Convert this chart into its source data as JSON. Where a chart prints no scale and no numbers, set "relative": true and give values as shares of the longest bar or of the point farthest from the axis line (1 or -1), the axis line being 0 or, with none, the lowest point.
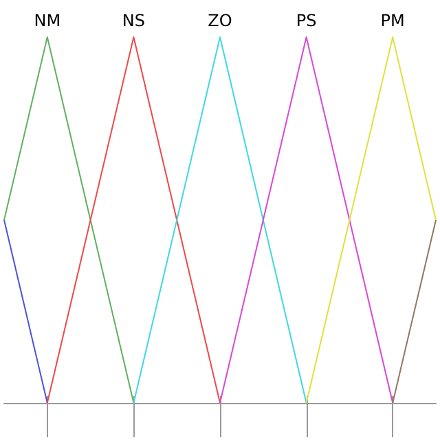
{
  "chart_data": {
    "type": "line",
    "relative": true,
    "categories": [
      null,
      "NM",
      null,
      "NS",
      null,
      "ZO",
      null,
      "PS",
      null,
      "PM",
      null
    ],
    "grid": false,
    "marker": "none",
    "line_style": "solid",
    "series": [
      {
        "color": "#5050e0",
        "values": [
          0.5,
          0,
          null,
          null,
          null,
          null,
          null,
          null,
          null,
          null,
          null
        ]
      },
      {
        "color": "#60b060",
        "values": [
          0.5,
          1,
          0.5,
          0,
          null,
          null,
          null,
          null,
          null,
          null,
          null
        ]
      },
      {
        "color": "#f04848",
        "values": [
          null,
          0,
          0.5,
          1,
          0.5,
          0,
          null,
          null,
          null,
          null,
          null
        ]
      },
      {
        "color": "#40d8e0",
        "values": [
          null,
          null,
          null,
          0,
          0.5,
          1,
          0.5,
          0,
          null,
          null,
          null
        ]
      },
      {
        "color": "#d848d8",
        "values": [
          null,
          null,
          null,
          null,
          null,
          0,
          0.5,
          1,
          0.5,
          0,
          null
        ]
      },
      {
        "color": "#e0e040",
        "values": [
          null,
          null,
          null,
          null,
          null,
          null,
          null,
          0,
          0.5,
          1,
          0.5
        ]
      },
      {
        "color": "#907860",
        "values": [
          null,
          null,
          null,
          null,
          null,
          null,
          null,
          null,
          null,
          0,
          0.5
        ]
      }
    ]
  }
}
